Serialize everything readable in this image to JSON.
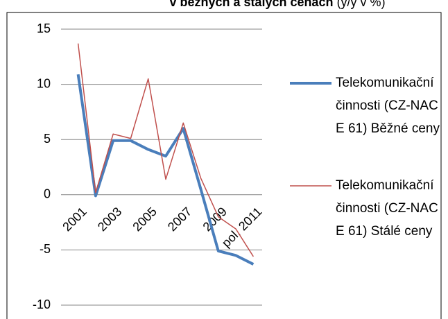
{
  "chart_data": {
    "type": "line",
    "title": "v běžných a stálých cenách",
    "subtitle": "(y/y v %)",
    "categories": [
      "2001",
      null,
      "2003",
      null,
      "2005",
      null,
      "2007",
      null,
      "2009",
      null,
      "pol. 2011"
    ],
    "series": [
      {
        "name": "Telekomunikační činnosti (CZ-NACE 61) Běžné ceny",
        "color": "#4a7ebb",
        "width": 4,
        "values": [
          10.9,
          -0.1,
          4.9,
          4.9,
          4.1,
          3.5,
          6.0,
          0.5,
          -5.1,
          -5.5,
          -6.3
        ]
      },
      {
        "name": "Telekomunikační činnosti (CZ-NACE 61) Stálé ceny",
        "color": "#c0504d",
        "width": 1.5,
        "values": [
          13.7,
          0.2,
          5.5,
          5.1,
          10.5,
          1.4,
          6.5,
          1.5,
          -2.0,
          -3.1,
          -5.6
        ]
      }
    ],
    "ylim": [
      -10,
      15
    ],
    "yticks": [
      -10,
      -5,
      0,
      5,
      10,
      15
    ],
    "grid": true
  }
}
